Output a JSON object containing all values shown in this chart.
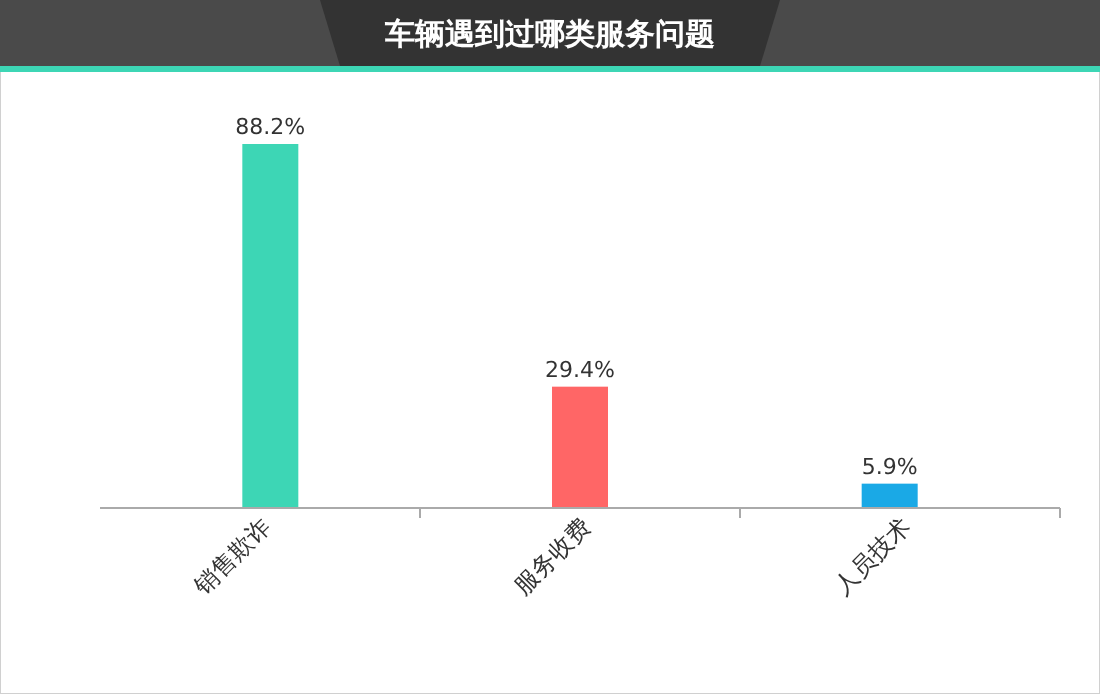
{
  "chart_data": {
    "type": "bar",
    "title": "车辆遇到过哪类服务问题",
    "categories": [
      "销售欺诈",
      "服务收费",
      "人员技术"
    ],
    "values": [
      88.2,
      29.4,
      5.9
    ],
    "colors": [
      "#3dd6b5",
      "#ff6666",
      "#1aa9e6"
    ],
    "value_labels": [
      "88.2%",
      "29.4%",
      "5.9%"
    ]
  }
}
